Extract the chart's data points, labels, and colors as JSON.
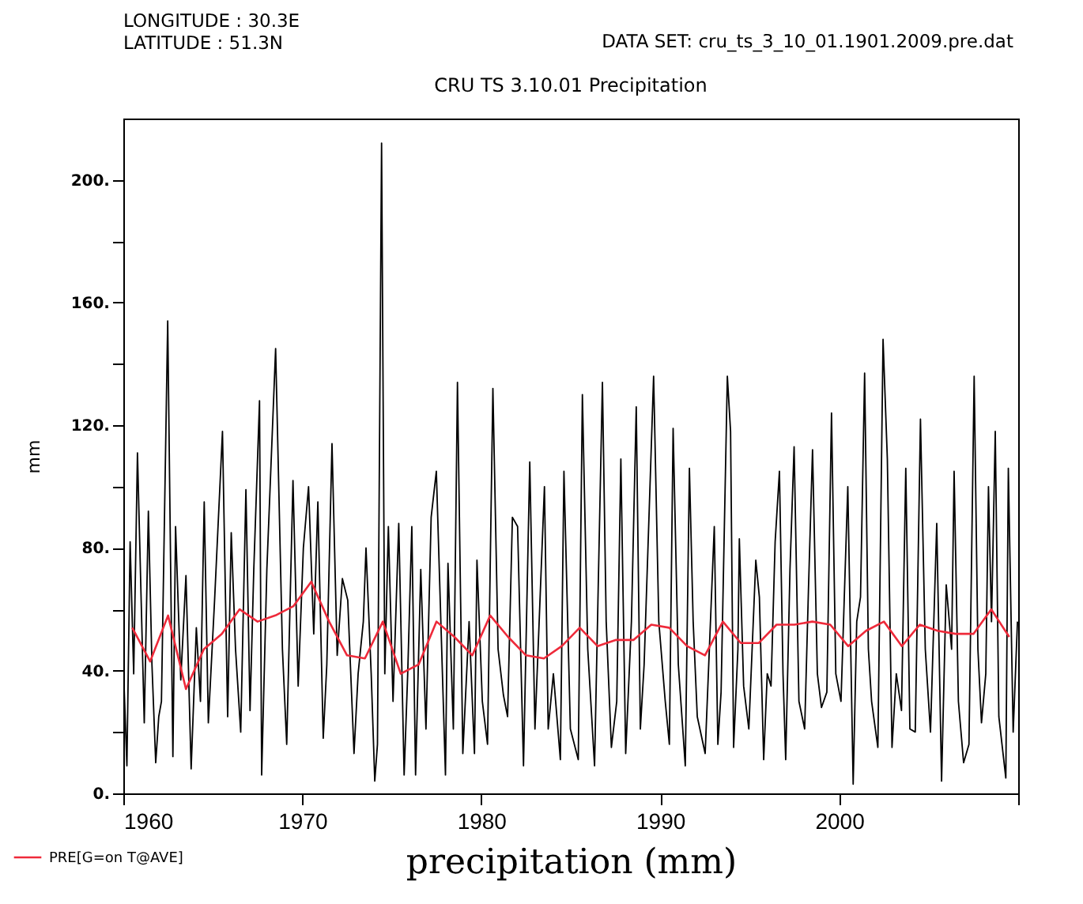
{
  "chart_data": {
    "type": "line",
    "title": "CRU TS 3.10.01 Precipitation",
    "xlabel": "precipitation (mm)",
    "ylabel": "mm",
    "annotations": [
      "LONGITUDE : 30.3E",
      "LATITUDE : 51.3N",
      "DATA SET: cru_ts_3_10_01.1901.2009.pre.dat"
    ],
    "xlim": [
      1960,
      2010
    ],
    "xticks": [
      1960,
      1970,
      1980,
      1990,
      2000,
      {
        "value": 2010,
        "label": null
      }
    ],
    "ylim": [
      0,
      220
    ],
    "yticks": [
      {
        "value": 0,
        "label": "0."
      },
      {
        "value": 20,
        "label": null
      },
      {
        "value": 40,
        "label": "40."
      },
      {
        "value": 60,
        "label": null
      },
      {
        "value": 80,
        "label": "80."
      },
      {
        "value": 100,
        "label": null
      },
      {
        "value": 120,
        "label": "120."
      },
      {
        "value": 140,
        "label": null
      },
      {
        "value": 160,
        "label": "160."
      },
      {
        "value": 180,
        "label": null
      },
      {
        "value": 200,
        "label": "200."
      }
    ],
    "legend": "bottom left",
    "series": [
      {
        "color": "#000000",
        "x": [
          1960.0,
          1960.2,
          1960.38,
          1960.58,
          1960.79,
          1961.17,
          1961.4,
          1961.6,
          1961.81,
          1961.98,
          1962.13,
          1962.48,
          1962.77,
          1962.92,
          1963.21,
          1963.5,
          1963.79,
          1964.08,
          1964.31,
          1964.52,
          1964.75,
          1965.1,
          1965.54,
          1965.83,
          1966.03,
          1966.27,
          1966.56,
          1966.85,
          1967.08,
          1967.29,
          1967.61,
          1967.73,
          1968.02,
          1968.51,
          1968.89,
          1969.13,
          1969.48,
          1969.77,
          1970.06,
          1970.35,
          1970.64,
          1970.87,
          1971.17,
          1971.37,
          1971.66,
          1971.95,
          1972.24,
          1972.54,
          1972.89,
          1973.12,
          1973.41,
          1973.56,
          1973.85,
          1974.05,
          1974.2,
          1974.43,
          1974.61,
          1974.81,
          1975.07,
          1975.39,
          1975.69,
          1975.89,
          1976.12,
          1976.33,
          1976.62,
          1976.91,
          1977.2,
          1977.49,
          1978.0,
          1978.14,
          1978.44,
          1978.67,
          1978.97,
          1979.32,
          1979.62,
          1979.76,
          1980.06,
          1980.35,
          1980.65,
          1980.94,
          1981.24,
          1981.47,
          1981.74,
          1982.03,
          1982.36,
          1982.71,
          1983.0,
          1983.53,
          1983.74,
          1984.03,
          1984.42,
          1984.62,
          1984.98,
          1985.42,
          1985.65,
          1985.95,
          1986.33,
          1986.77,
          1986.98,
          1987.27,
          1987.57,
          1987.8,
          1988.07,
          1988.39,
          1988.66,
          1988.89,
          1989.1,
          1989.63,
          1989.92,
          1990.28,
          1990.51,
          1990.72,
          1991.01,
          1991.4,
          1991.63,
          1991.84,
          1992.07,
          1992.51,
          1993.02,
          1993.22,
          1993.4,
          1993.75,
          1993.93,
          1994.1,
          1994.34,
          1994.42,
          1994.66,
          1994.95,
          1995.34,
          1995.54,
          1995.78,
          1995.98,
          1996.19,
          1996.42,
          1996.66,
          1996.86,
          1997.01,
          1997.25,
          1997.48,
          1997.75,
          1998.07,
          1998.28,
          1998.51,
          1998.78,
          1999.01,
          1999.31,
          1999.57,
          1999.81,
          2000.1,
          2000.48,
          2000.78,
          2000.98,
          2001.19,
          2001.42,
          2001.63,
          2001.81,
          2002.16,
          2002.45,
          2002.69,
          2002.95,
          2003.19,
          2003.48,
          2003.72,
          2003.95,
          2004.25,
          2004.54,
          2004.81,
          2005.1,
          2005.45,
          2005.72,
          2005.98,
          2006.28,
          2006.42,
          2006.66,
          2006.95,
          2007.25,
          2007.54,
          2007.75,
          2007.95,
          2008.19,
          2008.34,
          2008.51,
          2008.72,
          2008.92,
          2009.31,
          2009.45,
          2009.72,
          2009.96
        ],
        "values": [
          42,
          9,
          82,
          39,
          111,
          23,
          92,
          42,
          10,
          25,
          30,
          154,
          12,
          87,
          37,
          71,
          8,
          54,
          30,
          95,
          23,
          63,
          118,
          25,
          85,
          47,
          20,
          99,
          27,
          73,
          128,
          6,
          73,
          145,
          47,
          16,
          102,
          35,
          80,
          100,
          52,
          95,
          18,
          42,
          114,
          45,
          70,
          63,
          13,
          39,
          56,
          80,
          39,
          4,
          16,
          212,
          39,
          87,
          30,
          88,
          6,
          39,
          87,
          6,
          73,
          21,
          90,
          105,
          6,
          75,
          21,
          134,
          13,
          56,
          13,
          76,
          30,
          16,
          132,
          47,
          32,
          25,
          90,
          87,
          9,
          108,
          21,
          100,
          21,
          39,
          11,
          105,
          21,
          11,
          130,
          47,
          9,
          134,
          56,
          15,
          30,
          109,
          13,
          56,
          126,
          21,
          42,
          136,
          56,
          30,
          16,
          119,
          42,
          9,
          106,
          56,
          25,
          13,
          87,
          16,
          33,
          136,
          118,
          15,
          47,
          83,
          35,
          21,
          76,
          64,
          11,
          39,
          35,
          82,
          105,
          39,
          11,
          73,
          113,
          30,
          21,
          66,
          112,
          39,
          28,
          33,
          124,
          39,
          30,
          100,
          3,
          56,
          64,
          137,
          47,
          30,
          15,
          148,
          109,
          15,
          39,
          27,
          106,
          21,
          20,
          122,
          47,
          20,
          88,
          4,
          68,
          47,
          105,
          30,
          10,
          16,
          136,
          47,
          23,
          39,
          100,
          56,
          118,
          25,
          5,
          106,
          20,
          56
        ]
      },
      {
        "name": "PRE[G=on T@AVE]",
        "color": "#ee2a3a",
        "x": [
          1960.5,
          1961.5,
          1962.5,
          1963.5,
          1964.5,
          1965.5,
          1966.5,
          1967.5,
          1968.5,
          1969.5,
          1970.5,
          1971.5,
          1972.5,
          1973.5,
          1974.5,
          1975.5,
          1976.5,
          1977.5,
          1978.5,
          1979.5,
          1980.5,
          1981.5,
          1982.5,
          1983.5,
          1984.5,
          1985.5,
          1986.5,
          1987.5,
          1988.5,
          1989.5,
          1990.5,
          1991.5,
          1992.5,
          1993.5,
          1994.5,
          1995.5,
          1996.5,
          1997.5,
          1998.5,
          1999.5,
          2000.5,
          2001.5,
          2002.5,
          2003.5,
          2004.5,
          2005.5,
          2006.5,
          2007.5,
          2008.5,
          2009.5
        ],
        "values": [
          54,
          43,
          58,
          34,
          47,
          52,
          60,
          56,
          58,
          61,
          69,
          56,
          45,
          44,
          56,
          39,
          42,
          56,
          51,
          45,
          58,
          51,
          45,
          44,
          48,
          54,
          48,
          50,
          50,
          55,
          54,
          48,
          45,
          56,
          49,
          49,
          55,
          55,
          56,
          55,
          48,
          53,
          56,
          48,
          55,
          53,
          52,
          52,
          60,
          51
        ]
      }
    ]
  }
}
